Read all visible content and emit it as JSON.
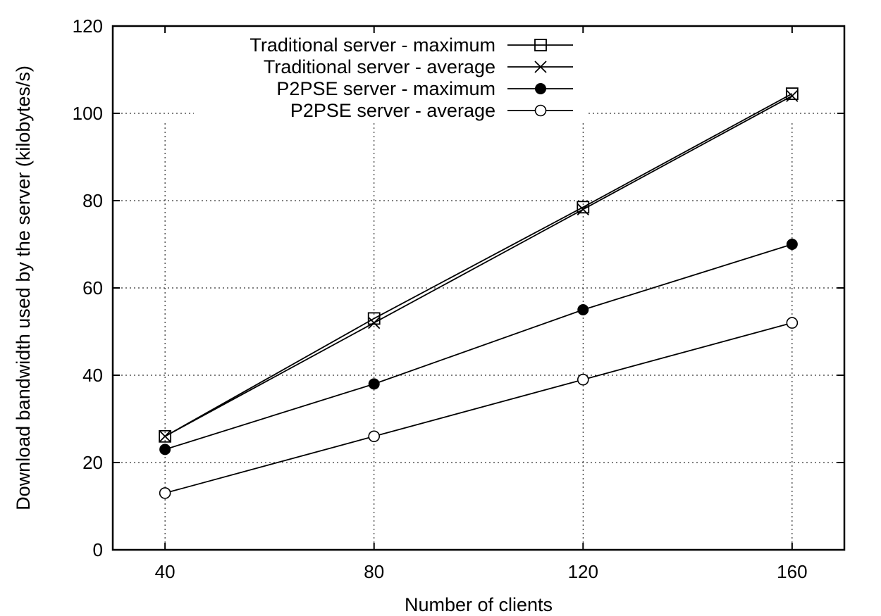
{
  "chart_data": {
    "type": "line",
    "xlabel": "Number of clients",
    "ylabel": "Download bandwidth used by the server (kilobytes/s)",
    "xlim": [
      30,
      170
    ],
    "ylim": [
      0,
      120
    ],
    "x_ticks": [
      40,
      80,
      120,
      160
    ],
    "y_ticks": [
      0,
      20,
      40,
      60,
      80,
      100,
      120
    ],
    "grid": true,
    "legend_position": "top-center",
    "x": [
      40,
      80,
      120,
      160
    ],
    "series": [
      {
        "name": "Traditional server - maximum",
        "marker": "open-square",
        "values": [
          26,
          53,
          78.5,
          104.5
        ]
      },
      {
        "name": "Traditional server - average",
        "marker": "cross",
        "values": [
          26,
          52,
          78,
          104
        ]
      },
      {
        "name": "P2PSE server - maximum",
        "marker": "filled-circle",
        "values": [
          23,
          38,
          55,
          70
        ]
      },
      {
        "name": "P2PSE server - average",
        "marker": "open-circle",
        "values": [
          13,
          26,
          39,
          52
        ]
      }
    ]
  }
}
